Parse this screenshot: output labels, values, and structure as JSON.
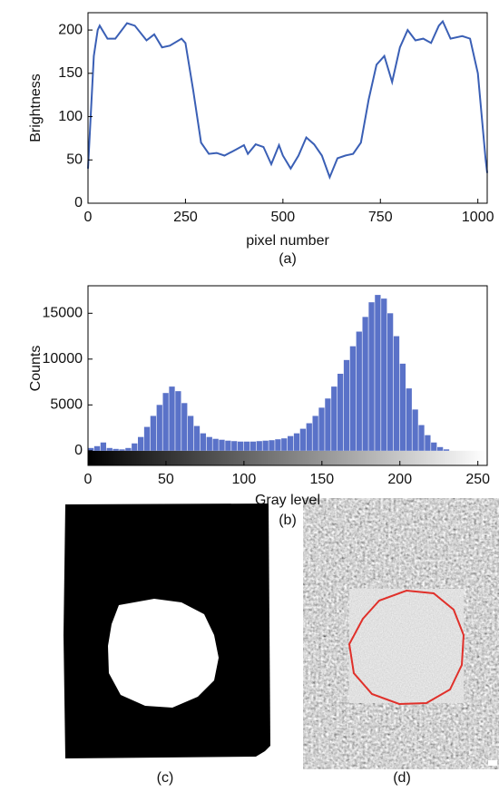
{
  "chart_data": [
    {
      "type": "line",
      "ylabel": "Brightness",
      "xlabel": "pixel number",
      "annotation": "(a)",
      "xlim": [
        0,
        1024
      ],
      "ylim": [
        0,
        220
      ],
      "xticks": [
        0,
        250,
        500,
        750,
        1000
      ],
      "yticks": [
        0,
        50,
        100,
        150,
        200
      ],
      "color": "#3a5fb5",
      "x": [
        0,
        15,
        25,
        30,
        50,
        70,
        100,
        120,
        150,
        170,
        190,
        210,
        240,
        250,
        270,
        290,
        310,
        330,
        350,
        380,
        400,
        410,
        430,
        450,
        470,
        490,
        500,
        520,
        540,
        560,
        580,
        600,
        620,
        640,
        660,
        680,
        700,
        720,
        740,
        760,
        780,
        800,
        820,
        840,
        860,
        880,
        900,
        910,
        930,
        960,
        980,
        1000,
        1020,
        1024
      ],
      "values": [
        40,
        170,
        200,
        205,
        190,
        190,
        208,
        205,
        188,
        195,
        180,
        182,
        190,
        185,
        130,
        70,
        57,
        58,
        55,
        62,
        67,
        57,
        68,
        65,
        45,
        67,
        55,
        40,
        55,
        76,
        68,
        55,
        30,
        52,
        55,
        57,
        70,
        120,
        160,
        170,
        140,
        180,
        200,
        188,
        190,
        185,
        205,
        210,
        190,
        193,
        190,
        150,
        50,
        35
      ]
    },
    {
      "type": "histogram",
      "ylabel": "Counts",
      "xlabel": "Gray level",
      "annotation": "(b)",
      "xlim": [
        0,
        256
      ],
      "ylim": [
        -1600,
        18000
      ],
      "xticks": [
        0,
        50,
        100,
        150,
        200,
        250
      ],
      "yticks": [
        0,
        5000,
        10000,
        15000
      ],
      "color": "#5a72c8",
      "bins": [
        0,
        4,
        8,
        12,
        16,
        20,
        24,
        28,
        32,
        36,
        40,
        44,
        48,
        52,
        56,
        60,
        64,
        68,
        72,
        76,
        80,
        84,
        88,
        92,
        96,
        100,
        104,
        108,
        112,
        116,
        120,
        124,
        128,
        132,
        136,
        140,
        144,
        148,
        152,
        156,
        160,
        164,
        168,
        172,
        176,
        180,
        184,
        188,
        192,
        196,
        200,
        204,
        208,
        212,
        216,
        220,
        224,
        228,
        232,
        236,
        240,
        244,
        248,
        252,
        256
      ],
      "values": [
        300,
        500,
        900,
        300,
        200,
        150,
        300,
        800,
        1500,
        2600,
        3800,
        5000,
        6300,
        7000,
        6500,
        5200,
        3800,
        2700,
        1900,
        1500,
        1300,
        1200,
        1100,
        1050,
        1000,
        1000,
        1000,
        1050,
        1100,
        1150,
        1250,
        1350,
        1600,
        1900,
        2400,
        3000,
        3800,
        4700,
        5700,
        7000,
        8400,
        9900,
        11400,
        13000,
        14600,
        16200,
        17000,
        16600,
        15000,
        12500,
        9500,
        6800,
        4500,
        2800,
        1700,
        900,
        400,
        150,
        0,
        0,
        0,
        0,
        0,
        0
      ]
    }
  ],
  "panels": [
    {
      "label": "(c)"
    },
    {
      "label": "(d)"
    }
  ]
}
